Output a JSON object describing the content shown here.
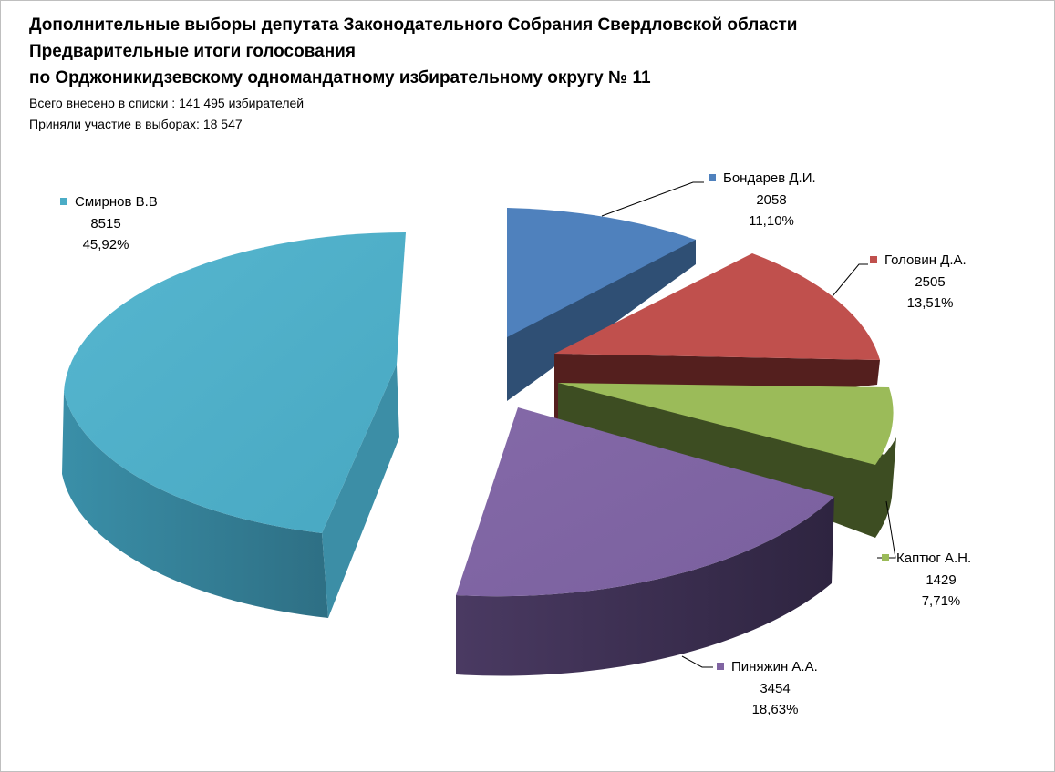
{
  "chart_data": {
    "type": "pie",
    "title_lines": [
      "Дополнительные выборы депутата Законодательного Собрания Свердловской области",
      "Предварительные итоги голосования",
      "по Орджоникидзевскому одномандатному избирательному округу  № 11"
    ],
    "subtitle_lines": [
      "Всего внесено в списки :  141 495 избирателей",
      "Приняли участие в выборах:  18 547"
    ],
    "slices": [
      {
        "name": "Бондарев Д.И.",
        "value": 2058,
        "value_label": "2058",
        "percent_label": "11,10%",
        "color": "#4F81BD"
      },
      {
        "name": "Головин Д.А.",
        "value": 2505,
        "value_label": "2505",
        "percent_label": "13,51%",
        "color": "#C0504D"
      },
      {
        "name": "Каптюг А.Н.",
        "value": 1429,
        "value_label": "1429",
        "percent_label": "7,71%",
        "color": "#9BBB59"
      },
      {
        "name": "Пиняжин А.А.",
        "value": 3454,
        "value_label": "3454",
        "percent_label": "18,63%",
        "color": "#8064A2"
      },
      {
        "name": "Смирнов В.В",
        "value": 8515,
        "value_label": "8515",
        "percent_label": "45,92%",
        "color": "#4BACC6"
      }
    ]
  }
}
